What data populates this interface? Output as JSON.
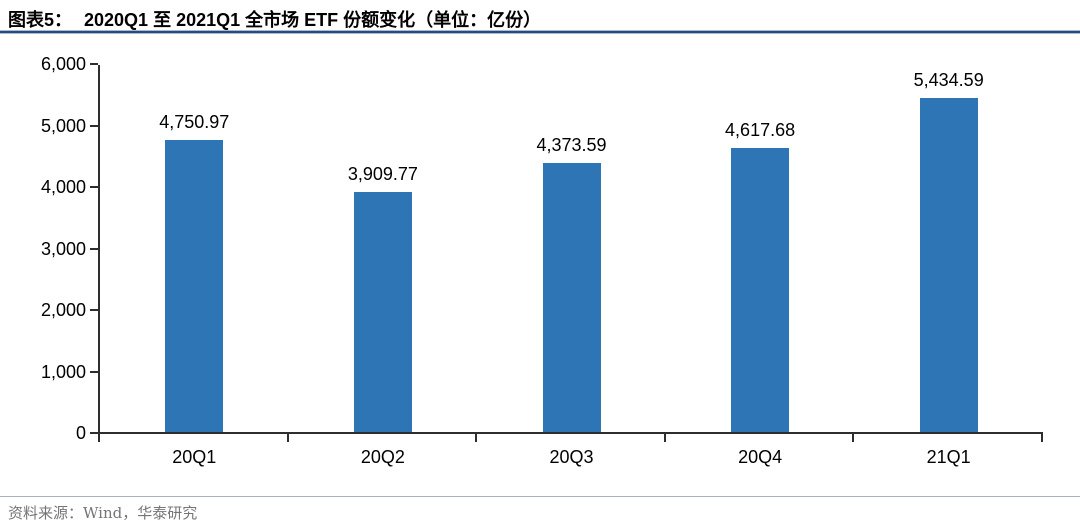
{
  "figure": {
    "label": "图表5：",
    "title": "2020Q1 至 2021Q1 全市场 ETF 份额变化（单位：亿份）",
    "source": "资料来源：Wind，华泰研究"
  },
  "colors": {
    "bar": "#2E75B6",
    "axis": "#2E2E2E",
    "title_rule_dark": "#2B4A77",
    "title_rule_light": "#A7BAD4",
    "footer_rule": "#A9B3BD",
    "footer_text": "#757575"
  },
  "chart_data": {
    "type": "bar",
    "title": "2020Q1 至 2021Q1 全市场 ETF 份额变化（单位：亿份）",
    "unit": "亿份",
    "categories": [
      "20Q1",
      "20Q2",
      "20Q3",
      "20Q4",
      "21Q1"
    ],
    "values": [
      4750.97,
      3909.77,
      4373.59,
      4617.68,
      5434.59
    ],
    "value_labels": [
      "4,750.97",
      "3,909.77",
      "4,373.59",
      "4,617.68",
      "5,434.59"
    ],
    "xlabel": "",
    "ylabel": "",
    "ylim": [
      0,
      6000
    ],
    "ytick_values": [
      0,
      1000,
      2000,
      3000,
      4000,
      5000,
      6000
    ],
    "ytick_labels": [
      "0",
      "1,000",
      "2,000",
      "3,000",
      "4,000",
      "5,000",
      "6,000"
    ],
    "grid": false,
    "legend": null,
    "bar_color": "#2E75B6"
  }
}
